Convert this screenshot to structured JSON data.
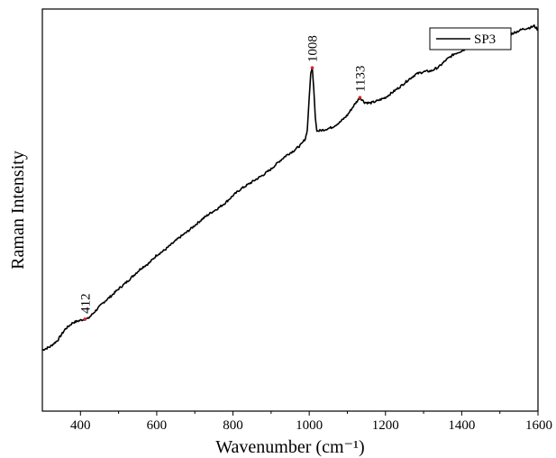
{
  "chart_data": {
    "type": "line",
    "title": "",
    "xlabel": "Wavenumber (cm⁻¹)",
    "ylabel": "Raman Intensity",
    "xlim": [
      300,
      1600
    ],
    "ylim": [
      0,
      100
    ],
    "x_ticks": [
      400,
      600,
      800,
      1000,
      1200,
      1400,
      1600
    ],
    "x_tick_labels": [
      "400",
      "600",
      "800",
      "1000",
      "1200",
      "1400",
      "1600"
    ],
    "y_ticks_shown": false,
    "grid": false,
    "legend": {
      "position": "top-right",
      "entries": [
        "SP3"
      ]
    },
    "colors": {
      "line": "#000000",
      "peak_marker": "#d62728"
    },
    "series": [
      {
        "name": "SP3",
        "x": [
          300,
          320,
          340,
          360,
          380,
          400,
          412,
          420,
          440,
          460,
          480,
          500,
          520,
          540,
          560,
          580,
          600,
          620,
          640,
          660,
          680,
          700,
          720,
          740,
          760,
          780,
          800,
          820,
          840,
          860,
          880,
          900,
          920,
          940,
          960,
          980,
          990,
          995,
          1000,
          1004,
          1008,
          1012,
          1016,
          1020,
          1030,
          1040,
          1060,
          1080,
          1100,
          1120,
          1133,
          1145,
          1160,
          1180,
          1200,
          1220,
          1240,
          1260,
          1280,
          1300,
          1320,
          1340,
          1360,
          1380,
          1400,
          1420,
          1440,
          1460,
          1480,
          1500,
          1520,
          1540,
          1560,
          1580,
          1590,
          1600
        ],
        "y": [
          15.2,
          16.0,
          17.6,
          20.4,
          22.0,
          22.6,
          22.9,
          23.0,
          25.0,
          27.0,
          28.6,
          30.4,
          32.0,
          33.8,
          35.6,
          36.8,
          38.8,
          40.0,
          41.6,
          43.2,
          44.6,
          46.2,
          47.8,
          49.2,
          50.4,
          51.8,
          53.6,
          55.2,
          56.4,
          57.6,
          58.8,
          60.2,
          62.0,
          63.6,
          64.8,
          66.4,
          67.8,
          70.0,
          78.0,
          84.0,
          85.4,
          80.0,
          73.0,
          69.6,
          69.8,
          70.0,
          70.6,
          71.8,
          73.6,
          76.4,
          78.0,
          76.8,
          76.6,
          77.2,
          78.0,
          79.4,
          80.8,
          82.4,
          83.8,
          84.4,
          84.6,
          85.6,
          87.4,
          88.8,
          89.6,
          90.6,
          91.4,
          91.2,
          92.2,
          92.6,
          93.4,
          94.2,
          95.0,
          95.4,
          95.8,
          94.8
        ]
      }
    ],
    "annotations": [
      {
        "x": 412,
        "y": 22.9,
        "label": "412"
      },
      {
        "x": 1008,
        "y": 85.4,
        "label": "1008"
      },
      {
        "x": 1133,
        "y": 78.0,
        "label": "1133"
      }
    ]
  }
}
